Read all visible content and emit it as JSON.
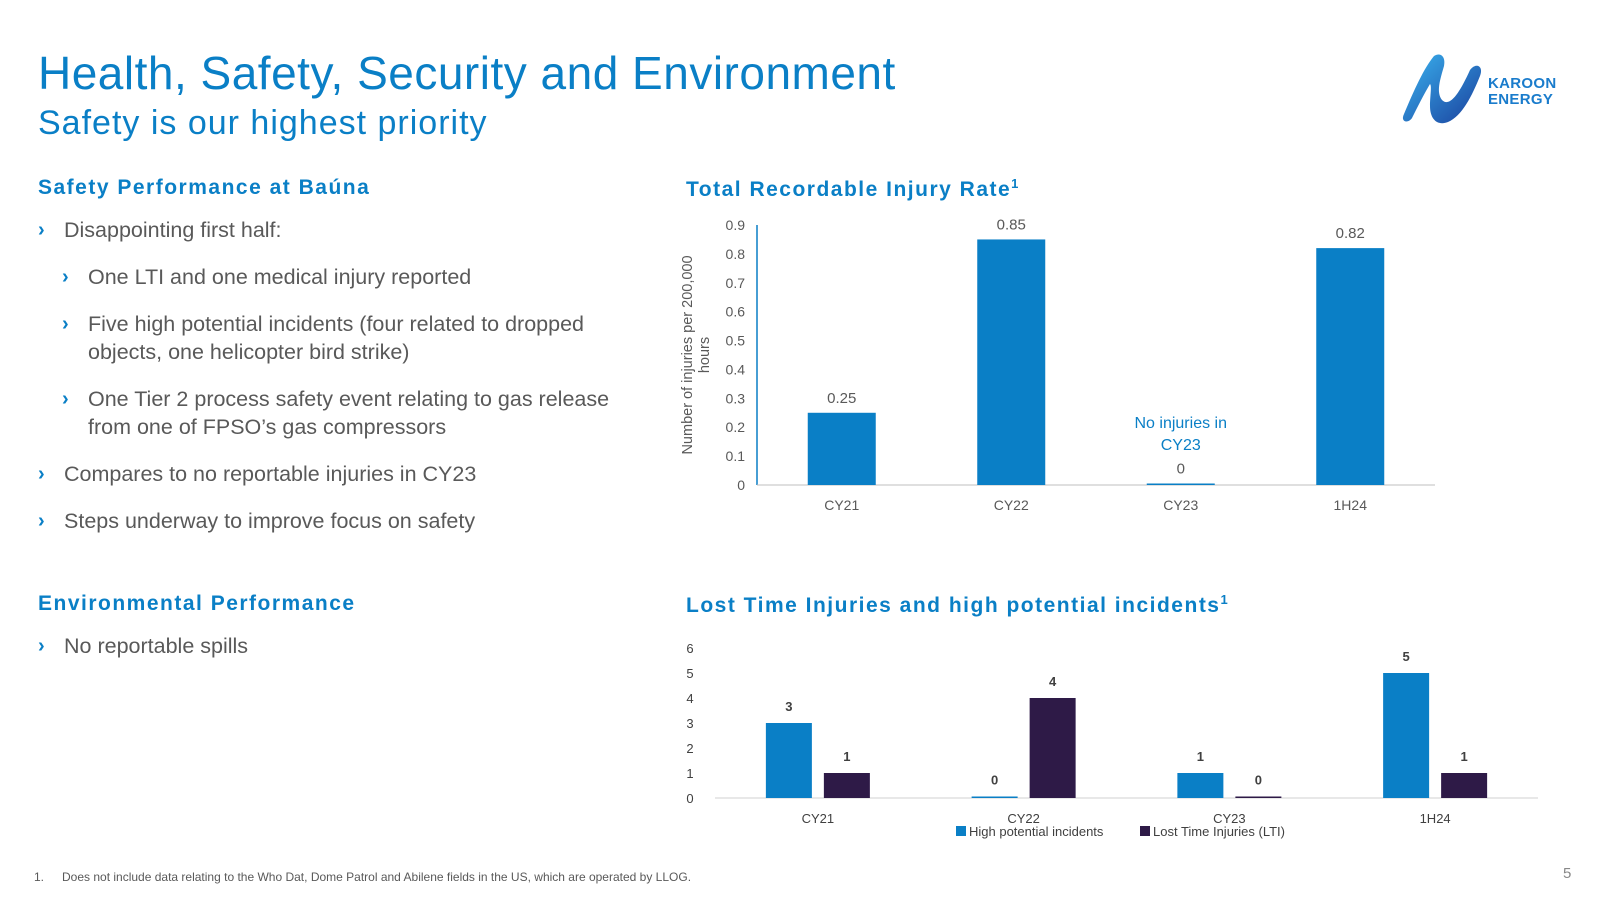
{
  "header": {
    "title": "Health, Safety, Security and Environment",
    "subtitle": "Safety is our highest priority",
    "logo_line1": "KAROON",
    "logo_line2": "ENERGY"
  },
  "left": {
    "safety_heading": "Safety Performance at Baúna",
    "safety_bullets": [
      {
        "level": 1,
        "text": "Disappointing first half:"
      },
      {
        "level": 2,
        "text": "One LTI and one medical injury reported"
      },
      {
        "level": 2,
        "text": "Five high potential incidents (four related to dropped objects, one helicopter bird strike)"
      },
      {
        "level": 2,
        "text": "One Tier 2 process safety event relating to gas release from one of FPSO’s gas compressors"
      },
      {
        "level": 1,
        "text": "Compares to no reportable injuries in CY23"
      },
      {
        "level": 1,
        "text": "Steps underway to improve focus on safety"
      }
    ],
    "env_heading": "Environmental Performance",
    "env_bullets": [
      {
        "level": 1,
        "text": "No reportable spills"
      }
    ],
    "chevron": "›"
  },
  "chart_data": [
    {
      "type": "bar",
      "title": "Total Recordable Injury Rate",
      "title_superscript": "1",
      "categories": [
        "CY21",
        "CY22",
        "CY23",
        "1H24"
      ],
      "values": [
        0.25,
        0.85,
        0,
        0.82
      ],
      "value_labels": [
        "0.25",
        "0.85",
        "0",
        "0.82"
      ],
      "ylabel": "Number of injuries per 200,000 hours",
      "ylim": [
        0,
        0.9
      ],
      "yticks": [
        "0",
        "0.1",
        "0.2",
        "0.3",
        "0.4",
        "0.5",
        "0.6",
        "0.7",
        "0.8",
        "0.9"
      ],
      "annotation": "No injuries in CY23",
      "color": "#0a7fc6"
    },
    {
      "type": "bar",
      "title": "Lost Time Injuries and high potential incidents",
      "title_superscript": "1",
      "categories": [
        "CY21",
        "CY22",
        "CY23",
        "1H24"
      ],
      "series": [
        {
          "name": "High potential incidents",
          "values": [
            3,
            0,
            1,
            5
          ],
          "color": "#0a7fc6"
        },
        {
          "name": "Lost Time Injuries (LTI)",
          "values": [
            1,
            4,
            0,
            1
          ],
          "color": "#2e1a47"
        }
      ],
      "ylim": [
        0,
        6
      ],
      "yticks": [
        "0",
        "1",
        "2",
        "3",
        "4",
        "5",
        "6"
      ],
      "legend": "bottom"
    }
  ],
  "footer": {
    "footnote_number": "1.",
    "footnote_text": "Does not include data relating to the Who Dat, Dome Patrol and Abilene fields in the US, which are operated by LLOG.",
    "page_number": "5"
  }
}
